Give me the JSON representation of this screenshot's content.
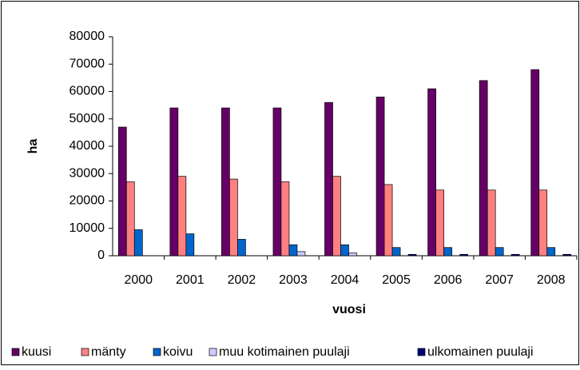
{
  "chart_data": {
    "type": "bar",
    "x_label": "vuosi",
    "y_label": "ha",
    "categories": [
      "2000",
      "2001",
      "2002",
      "2003",
      "2004",
      "2005",
      "2006",
      "2007",
      "2008"
    ],
    "series": [
      {
        "name": "kuusi",
        "color": "#660066",
        "values": [
          47000,
          54000,
          54000,
          54000,
          56000,
          58000,
          61000,
          64000,
          68000
        ]
      },
      {
        "name": "mänty",
        "color": "#ff8080",
        "values": [
          27000,
          29000,
          28000,
          27000,
          29000,
          26000,
          24000,
          24000,
          24000
        ]
      },
      {
        "name": "koivu",
        "color": "#0066cc",
        "values": [
          9500,
          8000,
          6000,
          4000,
          4000,
          3000,
          3000,
          3000,
          3000
        ]
      },
      {
        "name": "muu kotimainen puulaji",
        "color": "#ccccff",
        "values": [
          0,
          0,
          0,
          1500,
          1000,
          0,
          0,
          0,
          0
        ]
      },
      {
        "name": "ulkomainen puulaji",
        "color": "#000080",
        "values": [
          0,
          0,
          0,
          0,
          0,
          500,
          500,
          500,
          500
        ]
      }
    ],
    "ylim": [
      0,
      80000
    ],
    "yticks": [
      0,
      10000,
      20000,
      30000,
      40000,
      50000,
      60000,
      70000,
      80000
    ],
    "grid": false,
    "legend": "bottom"
  }
}
